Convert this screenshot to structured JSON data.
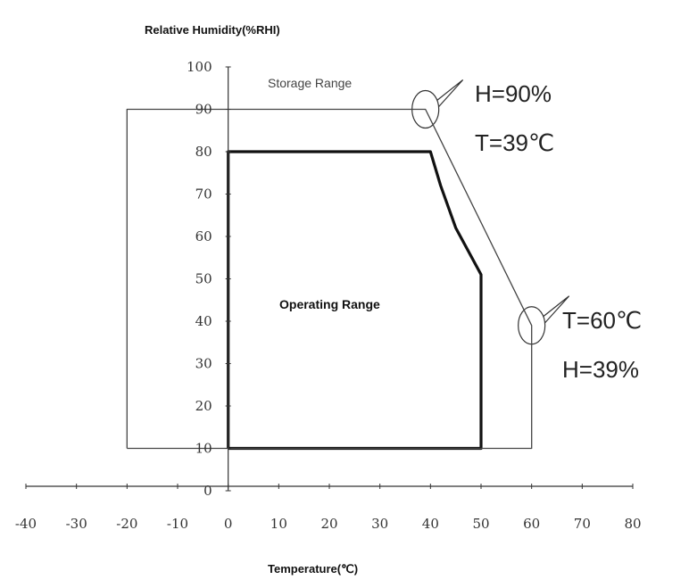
{
  "chart_data": {
    "type": "line",
    "ylabel": "Relative Humidity(%RHI)",
    "xlabel": "Temperature(℃)",
    "xlim": [
      -40,
      80
    ],
    "ylim": [
      0,
      100
    ],
    "x_ticks": [
      "-40",
      "-30",
      "-20",
      "-10",
      "0",
      "10",
      "20",
      "30",
      "40",
      "50",
      "60",
      "70",
      "80"
    ],
    "y_ticks": [
      "0",
      "10",
      "20",
      "30",
      "40",
      "50",
      "60",
      "70",
      "80",
      "90",
      "100"
    ],
    "grid": false,
    "series": [
      {
        "name": "Storage Range",
        "points": [
          [
            -20,
            10
          ],
          [
            -20,
            90
          ],
          [
            39,
            90
          ],
          [
            60,
            39
          ],
          [
            60,
            10
          ],
          [
            -20,
            10
          ]
        ]
      },
      {
        "name": "Operating Range",
        "points": [
          [
            0,
            10
          ],
          [
            0,
            80
          ],
          [
            40,
            80
          ],
          [
            42,
            72
          ],
          [
            45,
            62
          ],
          [
            50,
            51
          ],
          [
            50,
            10
          ],
          [
            0,
            10
          ]
        ]
      }
    ],
    "annotations": [
      {
        "x": 39,
        "y": 90,
        "lines": [
          "H=90%",
          "T=39℃"
        ]
      },
      {
        "x": 60,
        "y": 39,
        "lines": [
          "T=60℃",
          "H=39%"
        ]
      }
    ]
  }
}
